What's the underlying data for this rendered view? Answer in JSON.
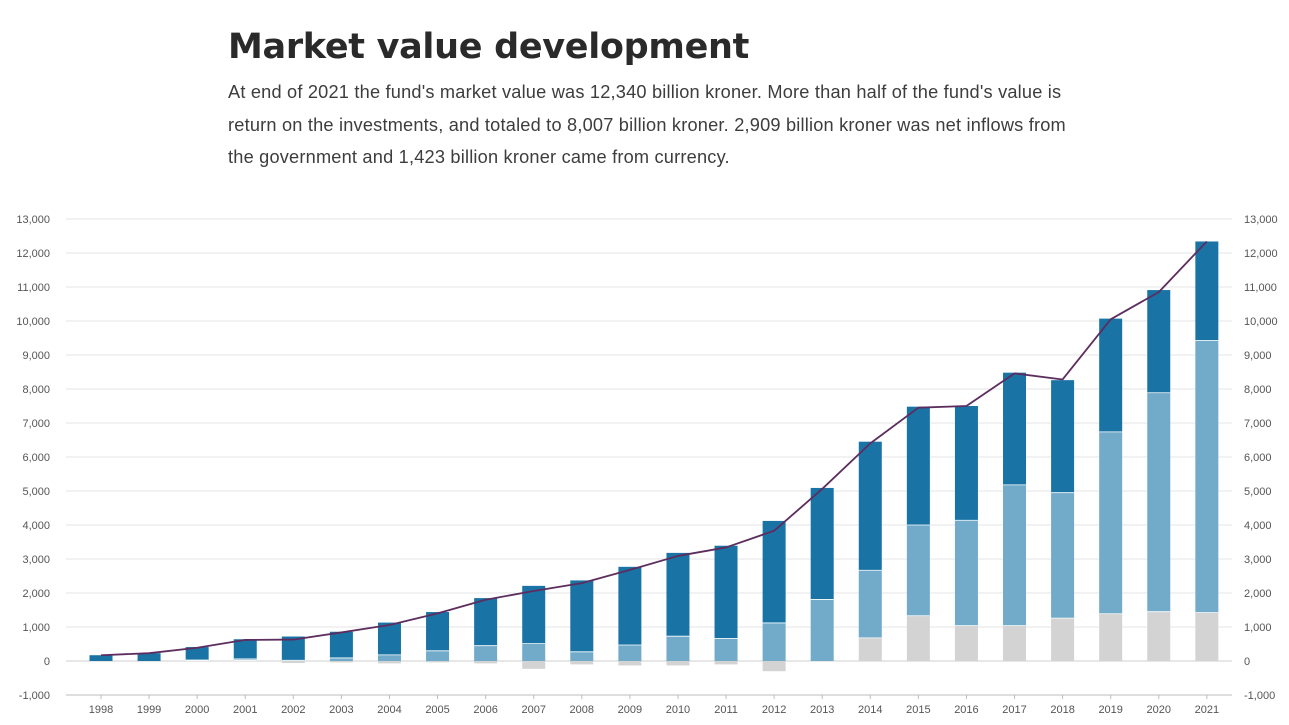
{
  "header": {
    "title": "Market value development",
    "subtitle": "At end of 2021 the fund's market value was 12,340 billion kroner. More than half of the fund's value is return on the investments, and totaled to 8,007 billion kroner. 2,909 billion kroner was net inflows from the government and 1,423 billion kroner came from currency."
  },
  "chart_data": {
    "type": "bar",
    "stacked": true,
    "title": "Market value development",
    "ylim": [
      -1000,
      13000
    ],
    "ytick_step": 1000,
    "yticks_left": [
      "-1,000",
      "0",
      "1,000",
      "2,000",
      "3,000",
      "4,000",
      "5,000",
      "6,000",
      "7,000",
      "8,000",
      "9,000",
      "10,000",
      "11,000",
      "12,000",
      "13,000"
    ],
    "yticks_right": [
      "-1,000",
      "0",
      "1,000",
      "2,000",
      "3,000",
      "4,000",
      "5,000",
      "6,000",
      "7,000",
      "8,000",
      "9,000",
      "10,000",
      "11,000",
      "12,000",
      "13,000"
    ],
    "grid": true,
    "categories": [
      "1998",
      "1999",
      "2000",
      "2001",
      "2002",
      "2003",
      "2004",
      "2005",
      "2006",
      "2007",
      "2008",
      "2009",
      "2010",
      "2011",
      "2012",
      "2013",
      "2014",
      "2015",
      "2016",
      "2017",
      "2018",
      "2019",
      "2020",
      "2021"
    ],
    "series": [
      {
        "key": "currency",
        "color": "#d3d3d3",
        "values": [
          0,
          0,
          10,
          20,
          -60,
          -40,
          -70,
          -40,
          -70,
          -230,
          -100,
          -130,
          -130,
          -100,
          -300,
          -10,
          680,
          1330,
          1040,
          1040,
          1260,
          1390,
          1450,
          1423
        ]
      },
      {
        "key": "returns",
        "color": "#72aac9",
        "values": [
          0,
          0,
          20,
          40,
          20,
          90,
          180,
          300,
          450,
          510,
          270,
          470,
          730,
          660,
          1120,
          1810,
          1990,
          2670,
          3100,
          4140,
          3690,
          5350,
          6440,
          8007
        ]
      },
      {
        "key": "inflows",
        "color": "#1a73a5",
        "values": [
          170,
          230,
          380,
          580,
          700,
          770,
          950,
          1140,
          1400,
          1700,
          2100,
          2300,
          2450,
          2730,
          3000,
          3280,
          3780,
          3480,
          3360,
          3300,
          3310,
          3330,
          3020,
          2909
        ]
      }
    ],
    "line": {
      "key": "market_value",
      "color": "#5c2d5e",
      "values": [
        170,
        230,
        390,
        620,
        630,
        840,
        1060,
        1400,
        1800,
        2060,
        2290,
        2680,
        3090,
        3340,
        3830,
        5060,
        6400,
        7450,
        7500,
        8460,
        8280,
        10050,
        10850,
        12340
      ]
    }
  }
}
